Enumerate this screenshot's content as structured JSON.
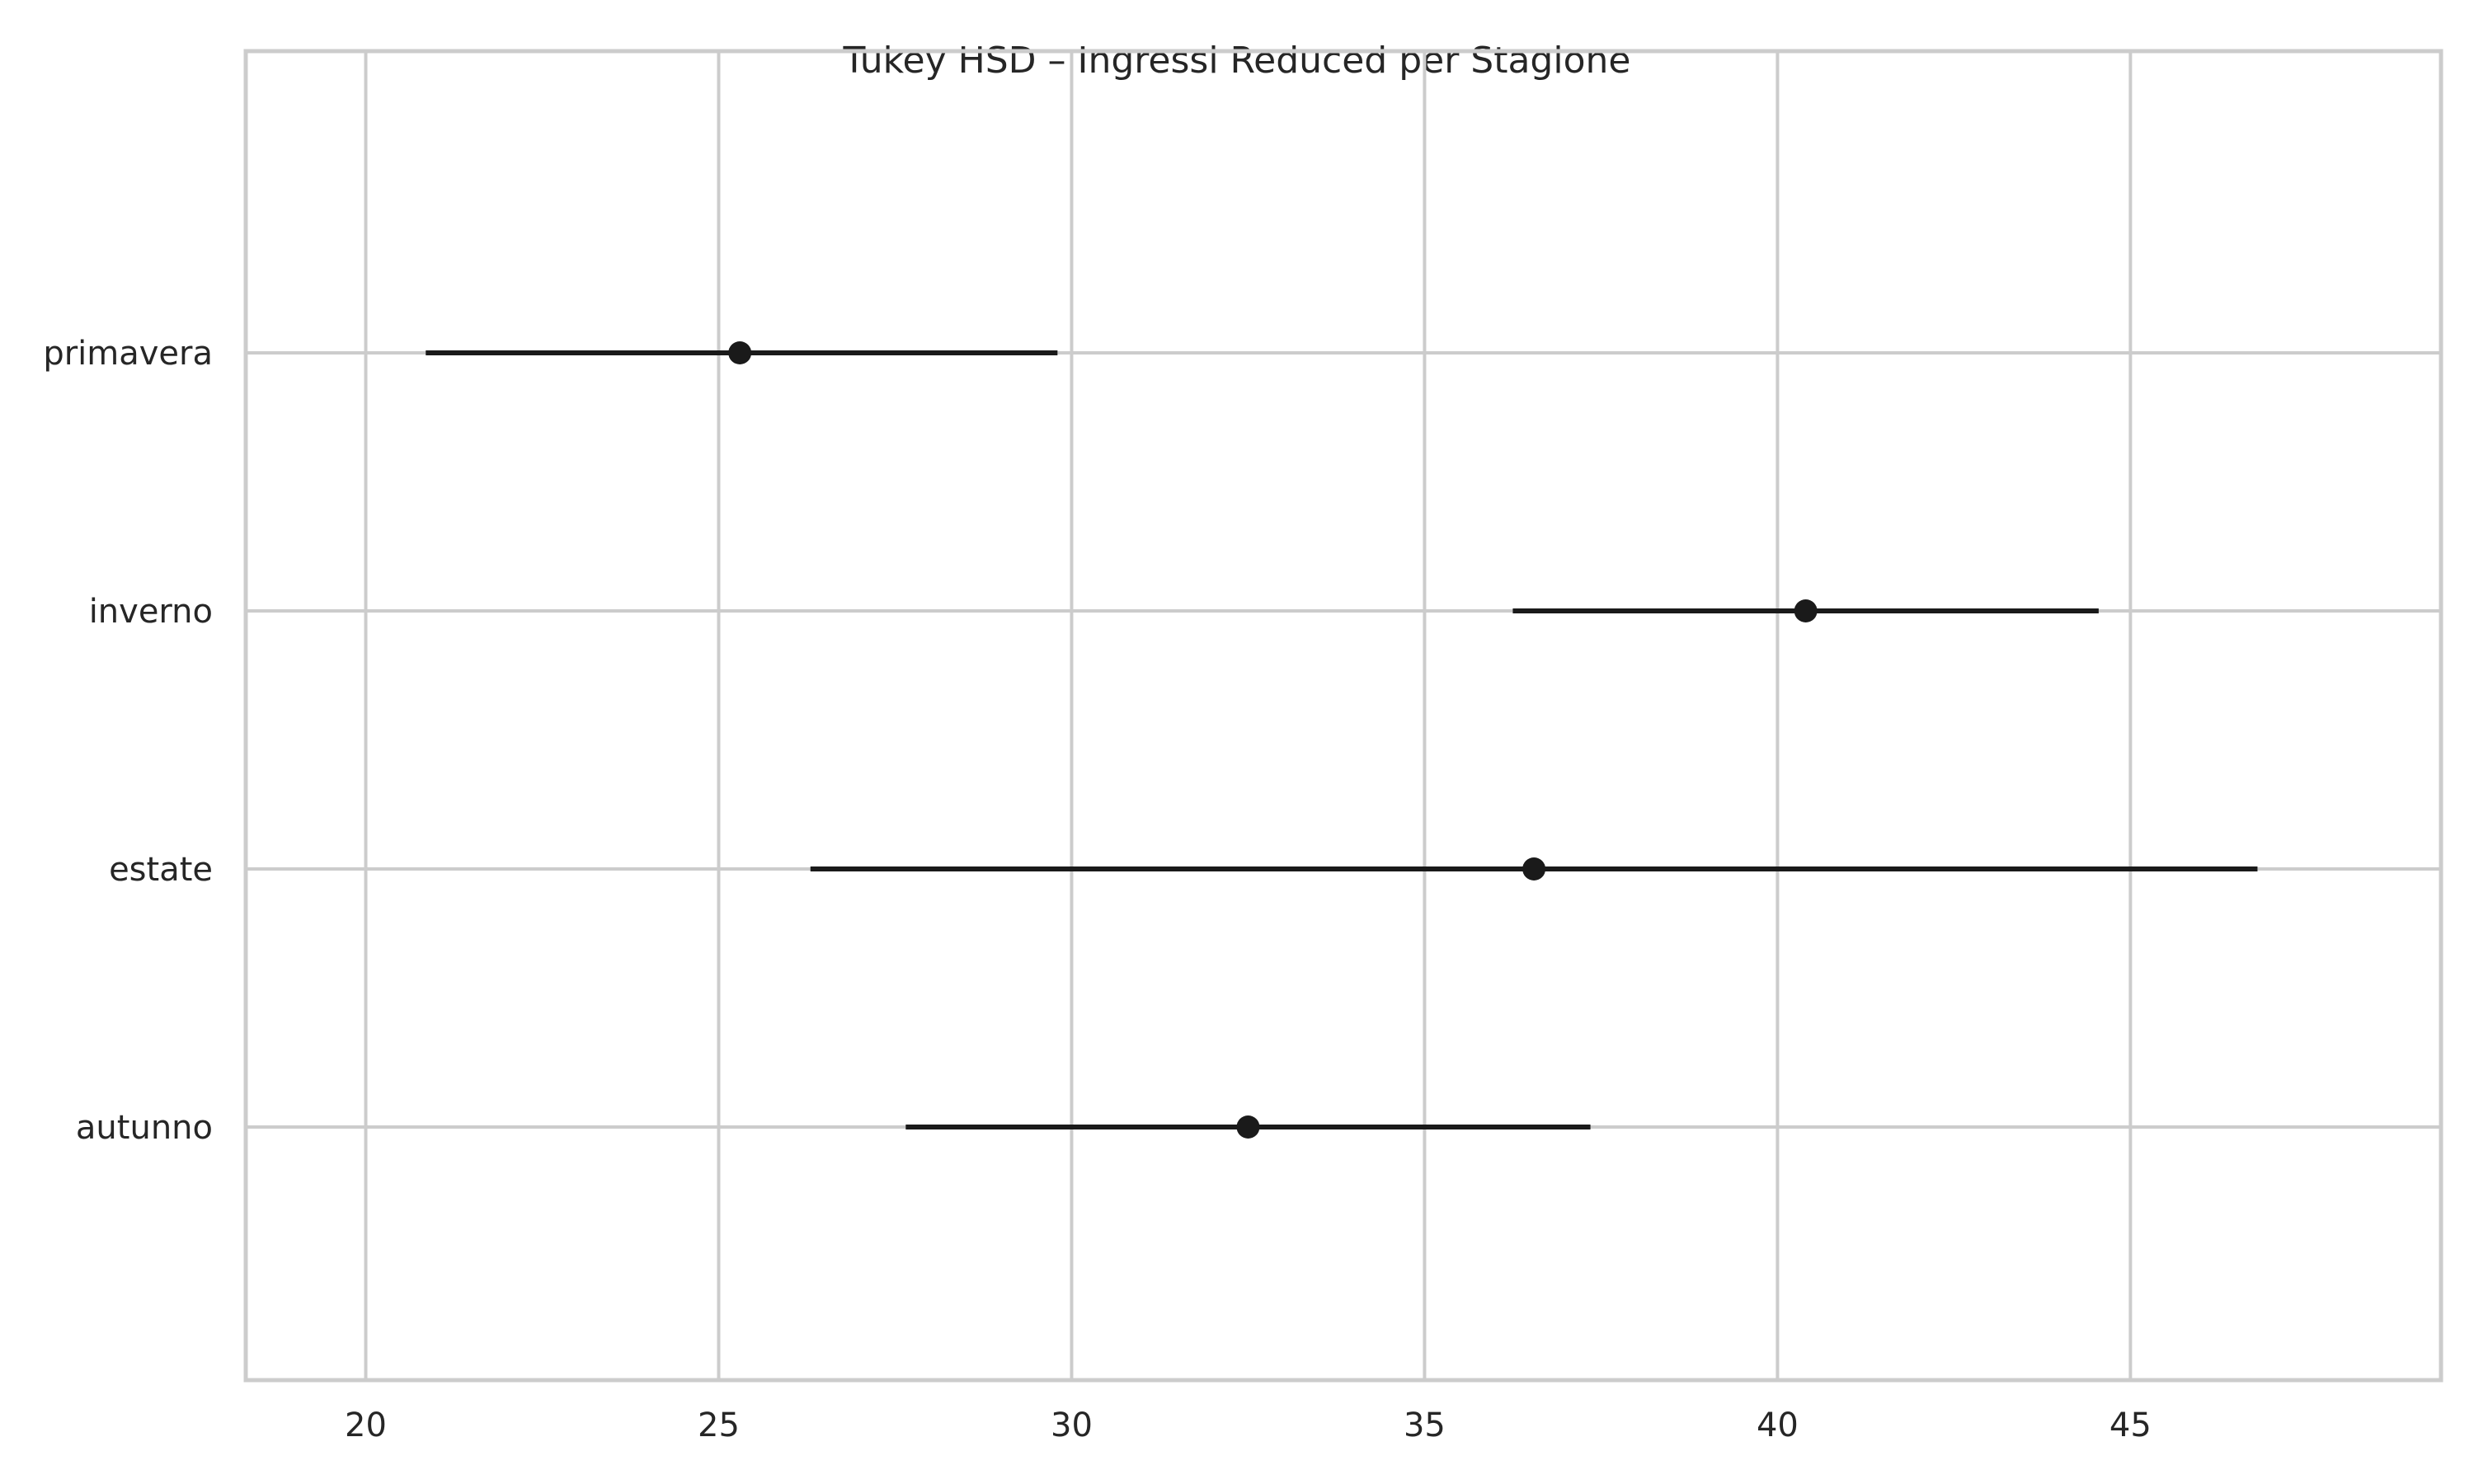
{
  "chart_data": {
    "type": "scatter",
    "title": "Tukey HSD – Ingressi Reduced per Stagione",
    "xlabel": "",
    "ylabel": "",
    "xlim": [
      18.3,
      49.4
    ],
    "xticks": [
      "20",
      "25",
      "30",
      "35",
      "40",
      "45"
    ],
    "categories": [
      "primavera",
      "inverno",
      "estate",
      "autunno"
    ],
    "series": [
      {
        "points": [
          {
            "category": "primavera",
            "mean": 25.3,
            "lower": 20.85,
            "upper": 29.8
          },
          {
            "category": "inverno",
            "mean": 40.4,
            "lower": 36.25,
            "upper": 44.55
          },
          {
            "category": "estate",
            "mean": 36.55,
            "lower": 26.3,
            "upper": 46.8
          },
          {
            "category": "autunno",
            "mean": 32.5,
            "lower": 27.65,
            "upper": 37.35
          }
        ]
      }
    ],
    "grid": true,
    "colors": {
      "marker": "#1a1a1a",
      "grid": "#cccccc",
      "text": "#262626"
    }
  }
}
